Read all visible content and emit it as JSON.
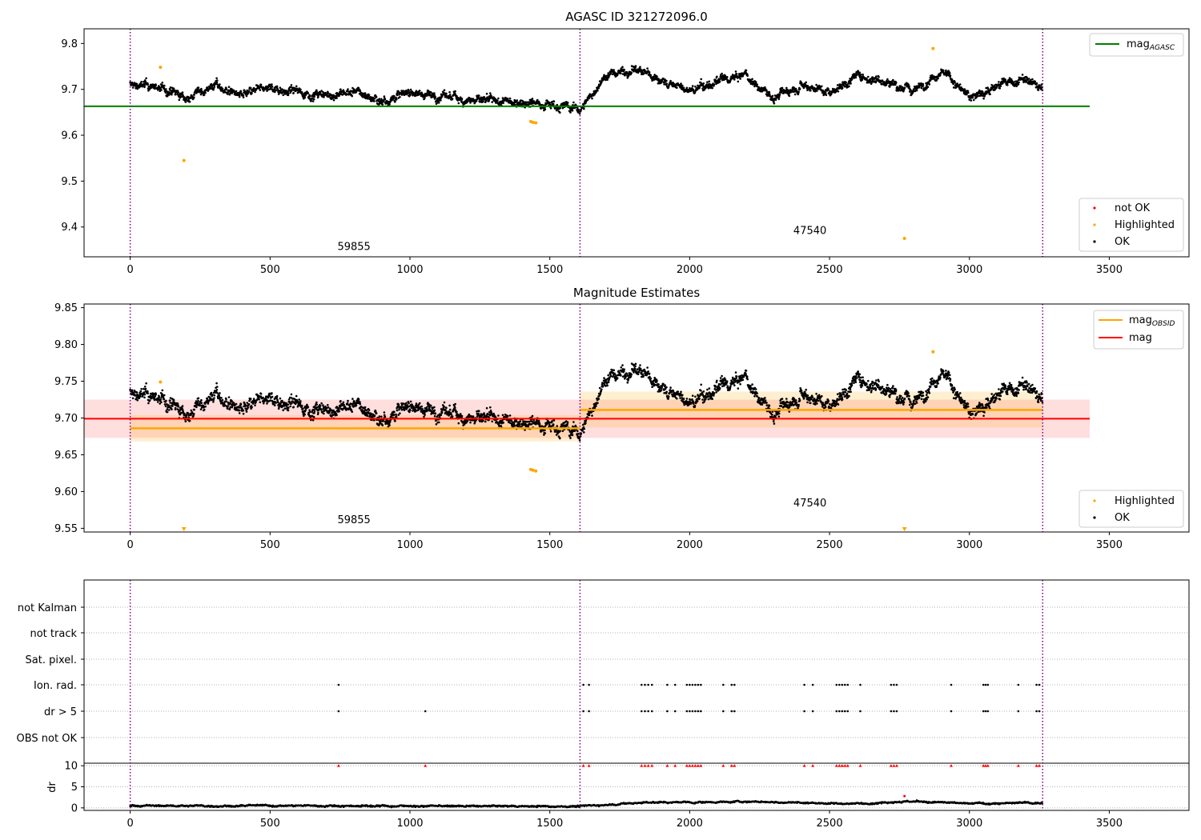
{
  "chart_data": [
    {
      "type": "scatter",
      "title": "AGASC ID 321272096.0",
      "xlim": [
        -165,
        3785
      ],
      "ylim": [
        9.335,
        9.832
      ],
      "xticks": [
        0,
        500,
        1000,
        1500,
        2000,
        2500,
        3000,
        3500
      ],
      "yticks": [
        9.4,
        9.5,
        9.6,
        9.7,
        9.8
      ],
      "obsid_boundaries": [
        0,
        1608,
        3262
      ],
      "obsid_labels": [
        {
          "text": "59855",
          "x": 800,
          "y": 9.35
        },
        {
          "text": "47540",
          "x": 2430,
          "y": 9.385
        }
      ],
      "legend_top": [
        {
          "name": "mag_AGASC",
          "color": "#008000"
        }
      ],
      "legend_bottom": [
        {
          "name": "not OK",
          "color": "#ff0000"
        },
        {
          "name": "Highlighted",
          "color": "#ffa500"
        },
        {
          "name": "OK",
          "color": "#000000"
        }
      ],
      "reference_line": {
        "name": "mag_AGASC",
        "y": 9.663,
        "x": [
          -165,
          3430
        ],
        "color": "#008000"
      },
      "highlighted_points": [
        {
          "x": 108,
          "y": 9.748
        },
        {
          "x": 192,
          "y": 9.545
        },
        {
          "x": 1432,
          "y": 9.63
        },
        {
          "x": 1440,
          "y": 9.628
        },
        {
          "x": 1450,
          "y": 9.627
        },
        {
          "x": 2768,
          "y": 9.375
        },
        {
          "x": 2870,
          "y": 9.789
        }
      ],
      "ok_series_profile": {
        "x": [
          0,
          100,
          200,
          300,
          400,
          500,
          600,
          700,
          800,
          900,
          1000,
          1100,
          1200,
          1300,
          1400,
          1500,
          1608,
          1700,
          1800,
          1900,
          2000,
          2100,
          2200,
          2300,
          2400,
          2500,
          2600,
          2700,
          2800,
          2900,
          3000,
          3100,
          3200,
          3262
        ],
        "y": [
          9.71,
          9.705,
          9.68,
          9.71,
          9.685,
          9.705,
          9.695,
          9.685,
          9.695,
          9.675,
          9.695,
          9.685,
          9.68,
          9.67,
          9.675,
          9.67,
          9.655,
          9.73,
          9.745,
          9.72,
          9.695,
          9.715,
          9.73,
          9.68,
          9.715,
          9.695,
          9.73,
          9.72,
          9.695,
          9.745,
          9.68,
          9.71,
          9.72,
          9.7
        ],
        "spread": 0.025
      }
    },
    {
      "type": "scatter",
      "title": "Magnitude Estimates",
      "xlim": [
        -165,
        3785
      ],
      "ylim": [
        9.545,
        9.855
      ],
      "xticks": [
        0,
        500,
        1000,
        1500,
        2000,
        2500,
        3000,
        3500
      ],
      "yticks": [
        9.55,
        9.6,
        9.65,
        9.7,
        9.75,
        9.8,
        9.85
      ],
      "obsid_boundaries": [
        0,
        1608,
        3262
      ],
      "obsid_labels": [
        {
          "text": "59855",
          "x": 800,
          "y": 9.557
        },
        {
          "text": "47540",
          "x": 2430,
          "y": 9.58
        }
      ],
      "legend_top": [
        {
          "name": "mag_OBSID",
          "color": "#ffa500"
        },
        {
          "name": "mag",
          "color": "#ff0000"
        }
      ],
      "legend_bottom": [
        {
          "name": "Highlighted",
          "color": "#ffa500"
        },
        {
          "name": "OK",
          "color": "#000000"
        }
      ],
      "mag": {
        "y": 9.699,
        "band": [
          9.673,
          9.725
        ],
        "x": [
          -165,
          3430
        ],
        "color": "#ff0000"
      },
      "mag_obsid": [
        {
          "x": [
            0,
            1608
          ],
          "y": 9.686,
          "band": [
            9.668,
            9.704
          ]
        },
        {
          "x": [
            1608,
            3262
          ],
          "y": 9.711,
          "band": [
            9.687,
            9.736
          ]
        }
      ],
      "highlighted_points": [
        {
          "x": 108,
          "y": 9.749
        },
        {
          "x": 192,
          "y": 9.55
        },
        {
          "x": 1432,
          "y": 9.63
        },
        {
          "x": 1440,
          "y": 9.629
        },
        {
          "x": 1450,
          "y": 9.628
        },
        {
          "x": 2768,
          "y": 9.55
        },
        {
          "x": 2870,
          "y": 9.79
        }
      ]
    },
    {
      "type": "scatter",
      "xlim": [
        -165,
        3785
      ],
      "xticks": [
        0,
        500,
        1000,
        1500,
        2000,
        2500,
        3000,
        3500
      ],
      "flag_rows": [
        "not Kalman",
        "not track",
        "Sat. pixel.",
        "Ion. rad.",
        "dr > 5",
        "OBS not OK"
      ],
      "obsid_boundaries": [
        0,
        1608,
        3262
      ],
      "flag_events": {
        "Ion. rad.": [
          745,
          1620,
          1640,
          1828,
          1840,
          1852,
          1865,
          1920,
          1948,
          1990,
          2000,
          2010,
          2020,
          2030,
          2040,
          2120,
          2150,
          2160,
          2410,
          2440,
          2525,
          2535,
          2545,
          2555,
          2565,
          2610,
          2720,
          2730,
          2740,
          2935,
          3050,
          3058,
          3066,
          3175,
          3240,
          3250
        ],
        "dr > 5": [
          745,
          1055,
          1620,
          1640,
          1828,
          1840,
          1852,
          1865,
          1920,
          1948,
          1990,
          2000,
          2010,
          2020,
          2030,
          2040,
          2120,
          2150,
          2160,
          2410,
          2440,
          2525,
          2535,
          2545,
          2555,
          2565,
          2610,
          2720,
          2730,
          2740,
          2935,
          3050,
          3058,
          3066,
          3175,
          3240,
          3250
        ]
      },
      "dr": {
        "ylabel": "dr",
        "yticks": [
          0,
          5,
          10
        ],
        "ylim": [
          -0.6,
          10.6
        ],
        "clipped_at_10": [
          745,
          1055,
          1620,
          1640,
          1828,
          1840,
          1852,
          1865,
          1920,
          1948,
          1990,
          2000,
          2010,
          2020,
          2030,
          2040,
          2120,
          2150,
          2160,
          2410,
          2440,
          2525,
          2535,
          2545,
          2555,
          2565,
          2610,
          2720,
          2730,
          2740,
          2935,
          3050,
          3058,
          3066,
          3175,
          3240,
          3250
        ],
        "outlier": {
          "x": 2768,
          "y": 2.8
        },
        "baseline_profile": {
          "x": [
            0,
            400,
            800,
            1200,
            1608,
            1850,
            2000,
            2200,
            2400,
            2600,
            2750,
            3000,
            3262
          ],
          "y": [
            0.5,
            0.5,
            0.5,
            0.4,
            0.4,
            1.3,
            1.3,
            1.5,
            1.2,
            1.0,
            1.6,
            1.0,
            1.2
          ]
        }
      }
    }
  ]
}
